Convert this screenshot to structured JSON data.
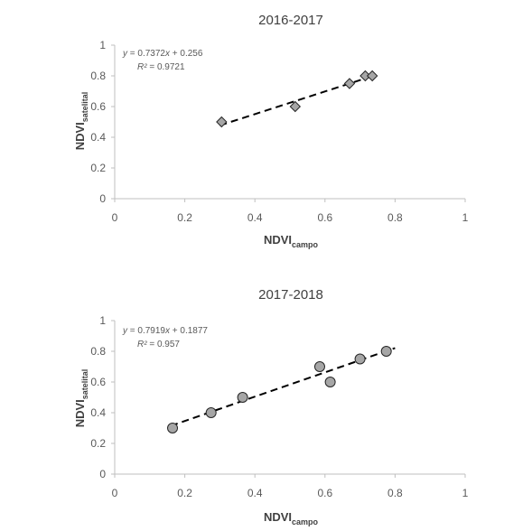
{
  "chart_data": [
    {
      "type": "scatter",
      "title": "2016-2017",
      "xlabel": {
        "main": "NDVI",
        "sub": "campo"
      },
      "ylabel": {
        "main": "NDVI",
        "sub": "satelital"
      },
      "xlim": [
        0,
        1
      ],
      "ylim": [
        0,
        1
      ],
      "xticks": [
        "0",
        "0.2",
        "0.4",
        "0.6",
        "0.8",
        "1"
      ],
      "yticks": [
        "0",
        "0.2",
        "0.4",
        "0.6",
        "0.8",
        "1"
      ],
      "marker": "diamond",
      "marker_color": "#a6a6a6",
      "points": [
        {
          "x": 0.305,
          "y": 0.5
        },
        {
          "x": 0.515,
          "y": 0.6
        },
        {
          "x": 0.67,
          "y": 0.75
        },
        {
          "x": 0.715,
          "y": 0.8
        },
        {
          "x": 0.735,
          "y": 0.8
        }
      ],
      "trendline": {
        "slope": 0.7372,
        "intercept": 0.256,
        "x_range": [
          0.3,
          0.74
        ]
      },
      "equation": {
        "y_var": "y",
        "eq_sign": " = ",
        "slope": "0.7372",
        "x_var": "x",
        "plus": " + ",
        "intercept": "0.256"
      },
      "r2": {
        "var": "R²",
        "eq_sign": " = ",
        "value": "0.9721"
      }
    },
    {
      "type": "scatter",
      "title": "2017-2018",
      "xlabel": {
        "main": "NDVI",
        "sub": "campo"
      },
      "ylabel": {
        "main": "NDVI",
        "sub": "satelital"
      },
      "xlim": [
        0,
        1
      ],
      "ylim": [
        0,
        1
      ],
      "xticks": [
        "0",
        "0.2",
        "0.4",
        "0.6",
        "0.8",
        "1"
      ],
      "yticks": [
        "0",
        "0.2",
        "0.4",
        "0.6",
        "0.8",
        "1"
      ],
      "marker": "circle",
      "marker_color": "#a6a6a6",
      "points": [
        {
          "x": 0.165,
          "y": 0.3
        },
        {
          "x": 0.275,
          "y": 0.4
        },
        {
          "x": 0.365,
          "y": 0.5
        },
        {
          "x": 0.585,
          "y": 0.7
        },
        {
          "x": 0.615,
          "y": 0.6
        },
        {
          "x": 0.7,
          "y": 0.75
        },
        {
          "x": 0.775,
          "y": 0.8
        }
      ],
      "trendline": {
        "slope": 0.7919,
        "intercept": 0.1877,
        "x_range": [
          0.16,
          0.8
        ]
      },
      "equation": {
        "y_var": "y",
        "eq_sign": " = ",
        "slope": "0.7919",
        "x_var": "x",
        "plus": " + ",
        "intercept": "0.1877"
      },
      "r2": {
        "var": "R²",
        "eq_sign": " = ",
        "value": "0.957"
      }
    }
  ]
}
